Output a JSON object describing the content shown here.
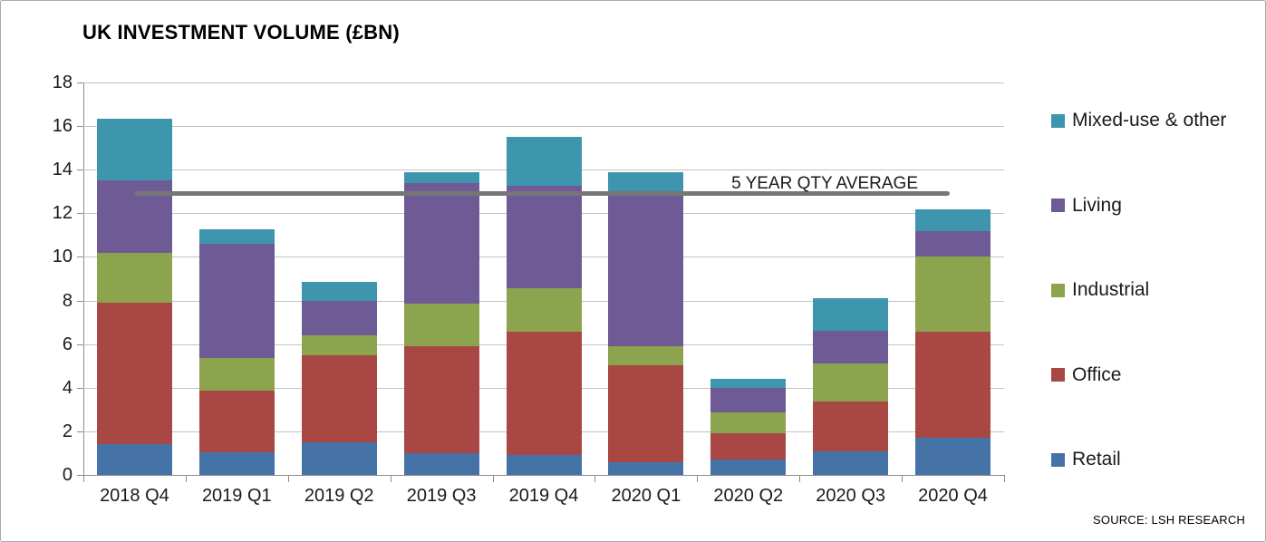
{
  "title": "UK INVESTMENT VOLUME (£BN)",
  "source_note": "SOURCE: LSH RESEARCH",
  "colors": {
    "retail": "#4573A7",
    "office": "#A84743",
    "industrial": "#8BA44D",
    "living": "#6E5A94",
    "mixed_use_other": "#3D96AE",
    "average_line": "#767676",
    "gridline": "#C3C3C3",
    "axis": "#8C8C8C"
  },
  "chart_data": {
    "type": "bar",
    "stacked": true,
    "title": "UK INVESTMENT VOLUME (£BN)",
    "categories": [
      "2018 Q4",
      "2019 Q1",
      "2019 Q2",
      "2019 Q3",
      "2019 Q4",
      "2020 Q1",
      "2020 Q2",
      "2020 Q3",
      "2020 Q4"
    ],
    "series": [
      {
        "name": "Retail",
        "color": "#4573A7",
        "values": [
          1.4,
          1.05,
          1.5,
          1.0,
          0.9,
          0.6,
          0.7,
          1.1,
          1.7
        ]
      },
      {
        "name": "Office",
        "color": "#A84743",
        "values": [
          6.5,
          2.8,
          4.0,
          4.9,
          5.65,
          4.45,
          1.2,
          2.25,
          4.85
        ]
      },
      {
        "name": "Industrial",
        "color": "#8BA44D",
        "values": [
          2.3,
          1.5,
          0.9,
          1.95,
          2.0,
          0.85,
          0.95,
          1.75,
          3.45
        ]
      },
      {
        "name": "Living",
        "color": "#6E5A94",
        "values": [
          3.3,
          5.25,
          1.6,
          5.55,
          4.7,
          6.95,
          1.15,
          1.5,
          1.2
        ]
      },
      {
        "name": "Mixed-use & other",
        "color": "#3D96AE",
        "values": [
          2.85,
          0.65,
          0.85,
          0.5,
          2.25,
          1.05,
          0.4,
          1.5,
          1.0
        ]
      }
    ],
    "totals": [
      16.35,
      11.25,
      8.85,
      13.9,
      15.5,
      13.9,
      4.4,
      8.1,
      12.2
    ],
    "ylim": [
      0,
      18
    ],
    "ytick_step": 2,
    "grid": true,
    "legend_position": "right",
    "legend_order_top_to_bottom": [
      "Mixed-use & other",
      "Living",
      "Industrial",
      "Office",
      "Retail"
    ],
    "annotation": {
      "label": "5 YEAR QTY AVERAGE",
      "value": 12.9
    }
  }
}
